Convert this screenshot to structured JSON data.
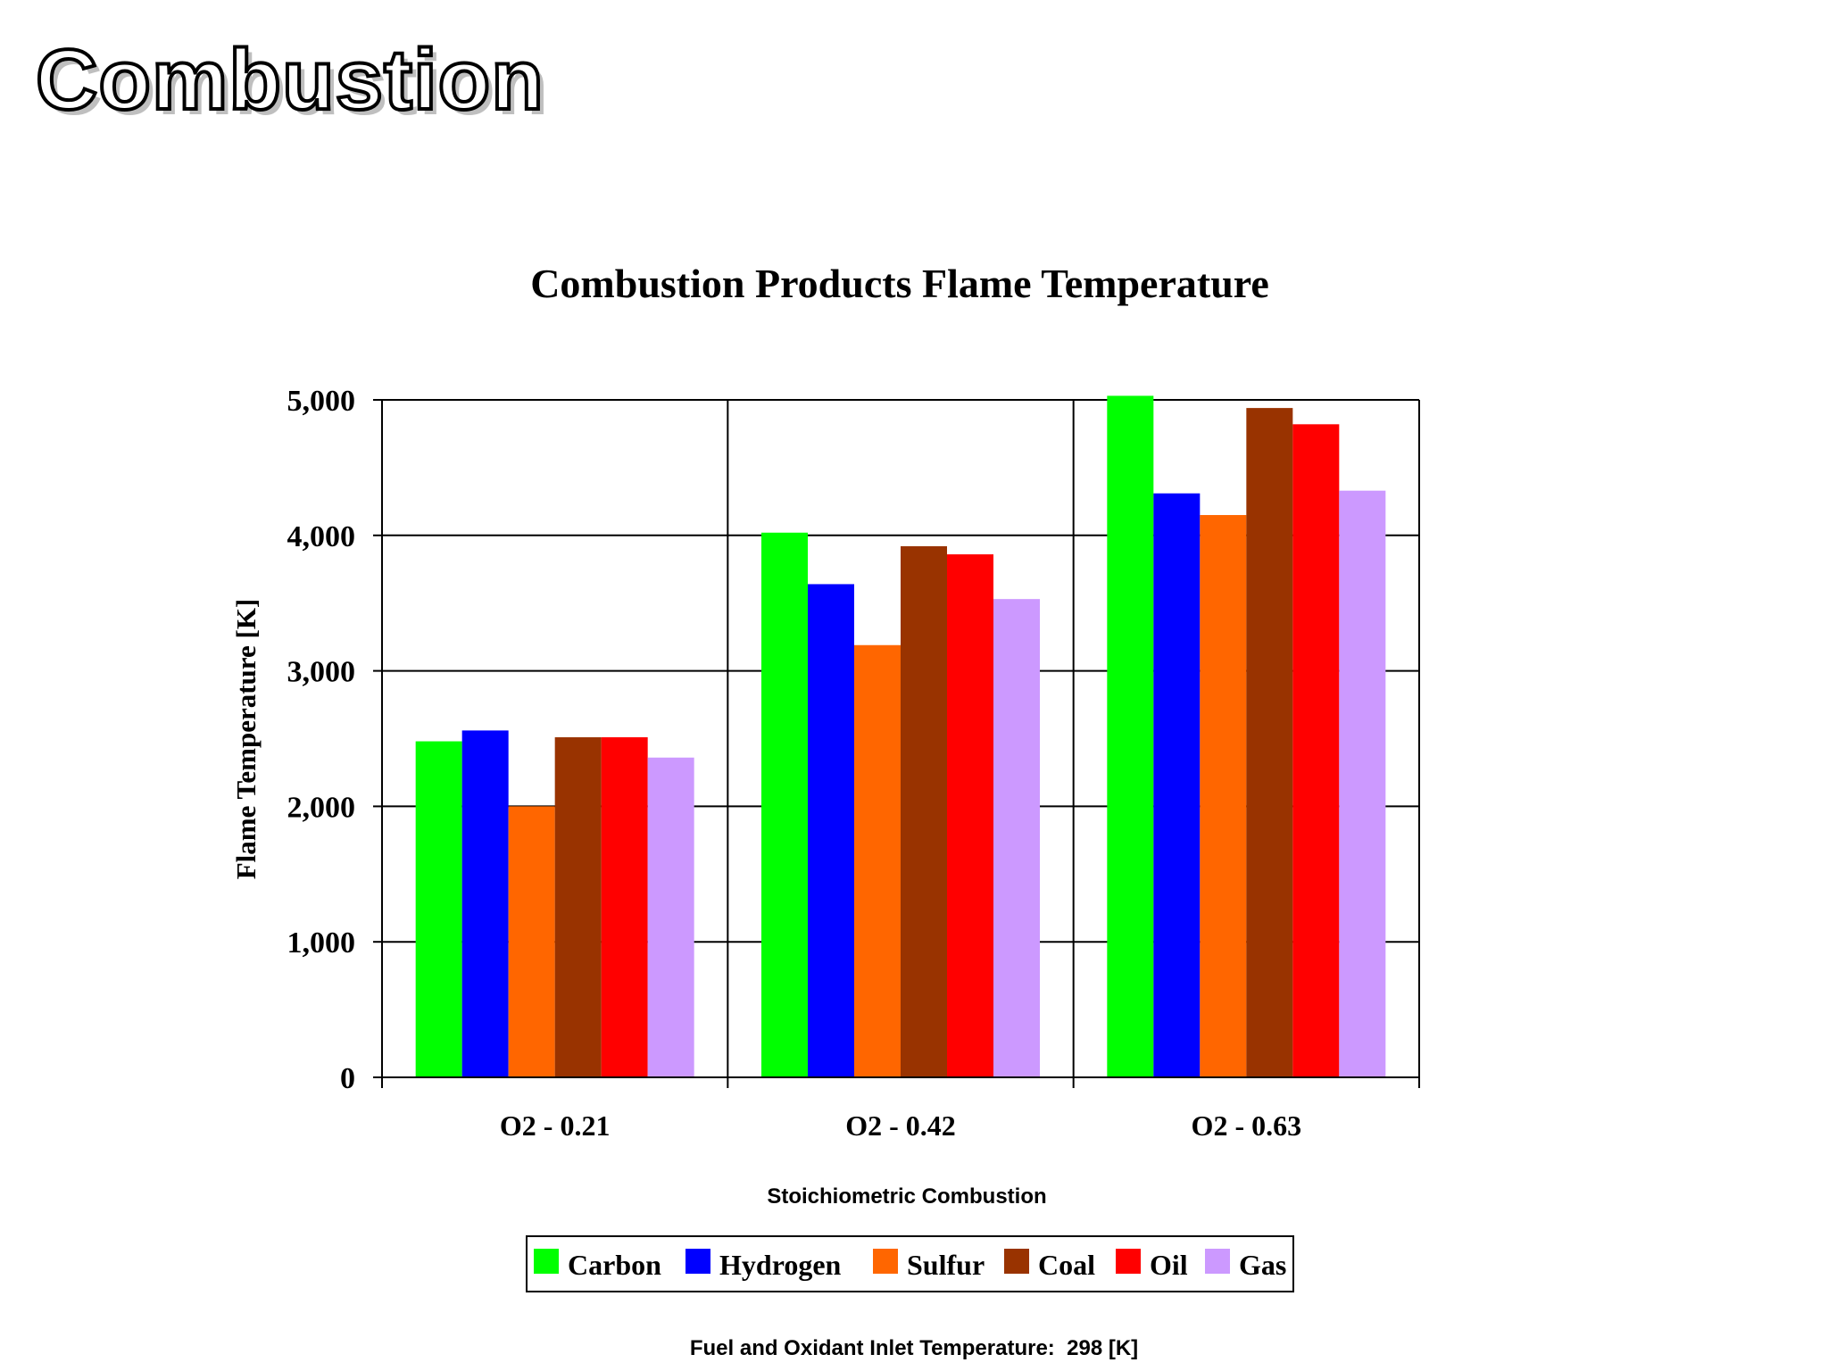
{
  "slide": {
    "title": "Combustion",
    "footnote": "Fuel and Oxidant Inlet Temperature:  298 [K]"
  },
  "chart_data": {
    "type": "bar",
    "title": "Combustion Products Flame Temperature",
    "xlabel": "Stoichiometric Combustion",
    "ylabel": "Flame Temperature [K]",
    "categories": [
      "O2 - 0.21",
      "O2 - 0.42",
      "O2 - 0.63"
    ],
    "ylim": [
      0,
      5000
    ],
    "yticks": [
      0,
      1000,
      2000,
      3000,
      4000,
      5000
    ],
    "ytick_labels": [
      "0",
      "1,000",
      "2,000",
      "3,000",
      "4,000",
      "5,000"
    ],
    "grid": true,
    "legend_position": "bottom",
    "series": [
      {
        "name": "Carbon",
        "color": "#00ff00",
        "values": [
          2480,
          4020,
          5030
        ]
      },
      {
        "name": "Hydrogen",
        "color": "#0000ff",
        "values": [
          2560,
          3640,
          4310
        ]
      },
      {
        "name": "Sulfur",
        "color": "#ff6600",
        "values": [
          2000,
          3190,
          4150
        ]
      },
      {
        "name": "Coal",
        "color": "#993300",
        "values": [
          2510,
          3920,
          4940
        ]
      },
      {
        "name": "Oil",
        "color": "#ff0000",
        "values": [
          2510,
          3860,
          4820
        ]
      },
      {
        "name": "Gas",
        "color": "#cc99ff",
        "values": [
          2360,
          3530,
          4330
        ]
      }
    ]
  }
}
